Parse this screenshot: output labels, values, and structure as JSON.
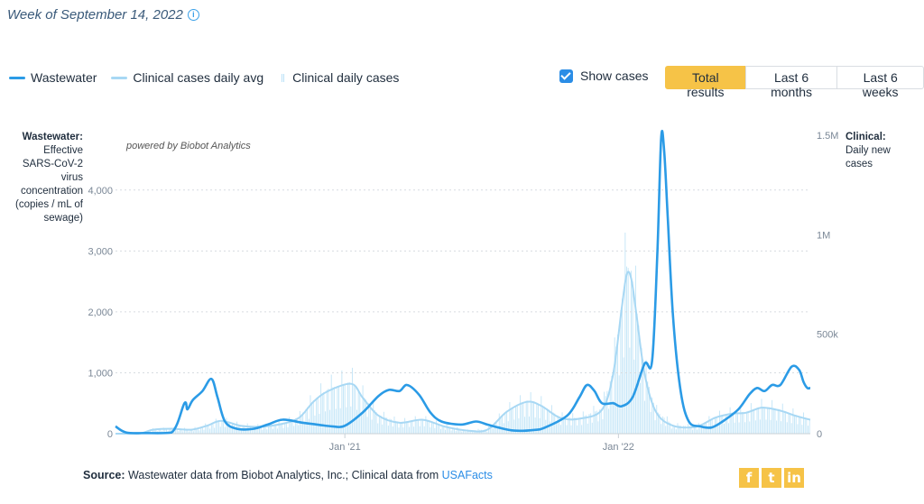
{
  "header": {
    "week_label": "Week of September 14, 2022",
    "info_icon": "i"
  },
  "legend": {
    "wastewater": "Wastewater",
    "clinical_avg": "Clinical cases daily avg",
    "clinical_daily": "Clinical daily cases"
  },
  "controls": {
    "show_cases_label": "Show cases",
    "show_cases_checked": true,
    "ranges": [
      "Total results",
      "Last 6 months",
      "Last 6 weeks"
    ],
    "active_range": "Total results"
  },
  "axes": {
    "left_title_bold": "Wastewater:",
    "left_title_rest": "Effective SARS-CoV-2 virus concentration (copies / mL of sewage)",
    "right_title_bold": "Clinical:",
    "right_title_rest": "Daily new cases"
  },
  "powered_by": "powered by Biobot Analytics",
  "source": {
    "label": "Source:",
    "text": "Wastewater data from Biobot Analytics, Inc.; Clinical data from",
    "link": "USAFacts"
  },
  "social": {
    "facebook": "f",
    "twitter": "t",
    "linkedin": "in"
  },
  "colors": {
    "wastewater": "#2b9be6",
    "clinical_avg": "#a8d8f4",
    "clinical_daily": "#c7e7f8",
    "accent": "#f6c347"
  },
  "chart_data": {
    "type": "line",
    "x_ticks": [
      {
        "label": "Jan '21",
        "date": "2021-01-01"
      },
      {
        "label": "Jan '22",
        "date": "2022-01-01"
      }
    ],
    "x_range": [
      "2020-03-01",
      "2022-09-14"
    ],
    "left_axis": {
      "ylim": [
        0,
        4900
      ],
      "ticks": [
        0,
        1000,
        2000,
        3000,
        4000
      ],
      "tick_labels": [
        "0",
        "1,000",
        "2,000",
        "3,000",
        "4,000"
      ]
    },
    "right_axis": {
      "ylim": [
        0,
        1500000
      ],
      "ticks": [
        0,
        500000,
        1000000,
        1500000
      ],
      "tick_labels": [
        "0",
        "500k",
        "1M",
        "1.5M"
      ]
    },
    "series": [
      {
        "name": "Wastewater",
        "axis": "left",
        "points": [
          [
            "2020-03-01",
            120
          ],
          [
            "2020-03-15",
            20
          ],
          [
            "2020-04-10",
            10
          ],
          [
            "2020-05-15",
            20
          ],
          [
            "2020-06-01",
            500
          ],
          [
            "2020-06-05",
            400
          ],
          [
            "2020-06-12",
            550
          ],
          [
            "2020-06-25",
            700
          ],
          [
            "2020-07-07",
            900
          ],
          [
            "2020-07-15",
            600
          ],
          [
            "2020-07-25",
            200
          ],
          [
            "2020-08-10",
            80
          ],
          [
            "2020-09-01",
            80
          ],
          [
            "2020-09-20",
            150
          ],
          [
            "2020-10-10",
            230
          ],
          [
            "2020-11-05",
            180
          ],
          [
            "2020-11-25",
            150
          ],
          [
            "2020-12-15",
            120
          ],
          [
            "2021-01-01",
            130
          ],
          [
            "2021-01-25",
            350
          ],
          [
            "2021-02-15",
            620
          ],
          [
            "2021-03-01",
            720
          ],
          [
            "2021-03-15",
            700
          ],
          [
            "2021-03-25",
            800
          ],
          [
            "2021-04-10",
            640
          ],
          [
            "2021-04-25",
            350
          ],
          [
            "2021-05-10",
            200
          ],
          [
            "2021-06-05",
            150
          ],
          [
            "2021-06-25",
            200
          ],
          [
            "2021-07-10",
            150
          ],
          [
            "2021-07-25",
            100
          ],
          [
            "2021-08-15",
            50
          ],
          [
            "2021-09-10",
            60
          ],
          [
            "2021-09-25",
            100
          ],
          [
            "2021-10-25",
            300
          ],
          [
            "2021-11-10",
            600
          ],
          [
            "2021-11-20",
            800
          ],
          [
            "2021-11-30",
            700
          ],
          [
            "2021-12-10",
            500
          ],
          [
            "2021-12-25",
            500
          ],
          [
            "2022-01-05",
            450
          ],
          [
            "2022-01-20",
            600
          ],
          [
            "2022-02-05",
            1150
          ],
          [
            "2022-02-15",
            1200
          ],
          [
            "2022-02-22",
            3000
          ],
          [
            "2022-02-27",
            4850
          ],
          [
            "2022-03-03",
            4650
          ],
          [
            "2022-03-08",
            3500
          ],
          [
            "2022-03-15",
            1900
          ],
          [
            "2022-03-25",
            700
          ],
          [
            "2022-04-05",
            200
          ],
          [
            "2022-04-20",
            120
          ],
          [
            "2022-05-05",
            100
          ],
          [
            "2022-05-20",
            200
          ],
          [
            "2022-06-10",
            400
          ],
          [
            "2022-06-25",
            650
          ],
          [
            "2022-07-05",
            750
          ],
          [
            "2022-07-15",
            700
          ],
          [
            "2022-07-25",
            800
          ],
          [
            "2022-08-05",
            800
          ],
          [
            "2022-08-20",
            1100
          ],
          [
            "2022-08-30",
            1050
          ],
          [
            "2022-09-05",
            850
          ],
          [
            "2022-09-10",
            750
          ],
          [
            "2022-09-14",
            750
          ]
        ]
      },
      {
        "name": "Clinical cases daily avg",
        "axis": "right",
        "points": [
          [
            "2020-03-01",
            0
          ],
          [
            "2020-04-01",
            0
          ],
          [
            "2020-04-20",
            20000
          ],
          [
            "2020-05-15",
            25000
          ],
          [
            "2020-06-10",
            20000
          ],
          [
            "2020-07-01",
            40000
          ],
          [
            "2020-07-20",
            65000
          ],
          [
            "2020-08-15",
            40000
          ],
          [
            "2020-09-10",
            35000
          ],
          [
            "2020-10-10",
            50000
          ],
          [
            "2020-11-01",
            80000
          ],
          [
            "2020-11-20",
            160000
          ],
          [
            "2020-12-10",
            215000
          ],
          [
            "2021-01-10",
            250000
          ],
          [
            "2021-01-25",
            180000
          ],
          [
            "2021-02-15",
            90000
          ],
          [
            "2021-03-15",
            55000
          ],
          [
            "2021-04-15",
            70000
          ],
          [
            "2021-05-15",
            35000
          ],
          [
            "2021-06-15",
            15000
          ],
          [
            "2021-07-10",
            20000
          ],
          [
            "2021-08-05",
            110000
          ],
          [
            "2021-09-01",
            160000
          ],
          [
            "2021-09-20",
            140000
          ],
          [
            "2021-10-15",
            80000
          ],
          [
            "2021-11-10",
            75000
          ],
          [
            "2021-12-10",
            120000
          ],
          [
            "2021-12-25",
            300000
          ],
          [
            "2022-01-05",
            620000
          ],
          [
            "2022-01-12",
            800000
          ],
          [
            "2022-01-18",
            780000
          ],
          [
            "2022-01-25",
            600000
          ],
          [
            "2022-02-05",
            300000
          ],
          [
            "2022-02-20",
            110000
          ],
          [
            "2022-03-15",
            40000
          ],
          [
            "2022-04-15",
            35000
          ],
          [
            "2022-05-10",
            80000
          ],
          [
            "2022-06-01",
            100000
          ],
          [
            "2022-06-20",
            105000
          ],
          [
            "2022-07-10",
            130000
          ],
          [
            "2022-07-25",
            125000
          ],
          [
            "2022-08-10",
            110000
          ],
          [
            "2022-08-25",
            90000
          ],
          [
            "2022-09-14",
            70000
          ]
        ]
      }
    ]
  }
}
